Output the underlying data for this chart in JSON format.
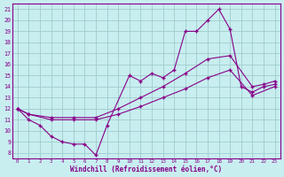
{
  "xlabel": "Windchill (Refroidissement éolien,°C)",
  "bg_color": "#c8eef0",
  "grid_color": "#a0cccc",
  "line_color": "#880088",
  "xlim": [
    -0.5,
    23.5
  ],
  "ylim": [
    7.5,
    21.5
  ],
  "xticks": [
    0,
    1,
    2,
    3,
    4,
    5,
    6,
    7,
    8,
    9,
    10,
    11,
    12,
    13,
    14,
    15,
    16,
    17,
    18,
    19,
    20,
    21,
    22,
    23
  ],
  "yticks": [
    8,
    9,
    10,
    11,
    12,
    13,
    14,
    15,
    16,
    17,
    18,
    19,
    20,
    21
  ],
  "line1_x": [
    0,
    1,
    2,
    3,
    4,
    5,
    6,
    7,
    8,
    10,
    11,
    12,
    13,
    14,
    15,
    16,
    17,
    18,
    19,
    20,
    21,
    22,
    23
  ],
  "line1_y": [
    12,
    11,
    10.5,
    9.5,
    9.0,
    8.8,
    8.8,
    7.8,
    10.5,
    15.0,
    14.5,
    15.2,
    14.8,
    15.5,
    19.0,
    19.0,
    20.0,
    21.0,
    19.2,
    14.0,
    13.5,
    14.0,
    14.2
  ],
  "line2_x": [
    0,
    1,
    3,
    5,
    7,
    9,
    11,
    13,
    15,
    17,
    19,
    21,
    23
  ],
  "line2_y": [
    12.0,
    11.5,
    11.0,
    11.0,
    11.0,
    11.5,
    12.2,
    13.0,
    13.8,
    14.8,
    15.5,
    13.2,
    14.0
  ],
  "line3_x": [
    0,
    1,
    3,
    5,
    7,
    9,
    11,
    13,
    15,
    17,
    19,
    21,
    22,
    23
  ],
  "line3_y": [
    12.0,
    11.5,
    11.2,
    11.2,
    11.2,
    12.0,
    13.0,
    14.0,
    15.2,
    16.5,
    16.8,
    14.0,
    14.2,
    14.5
  ]
}
